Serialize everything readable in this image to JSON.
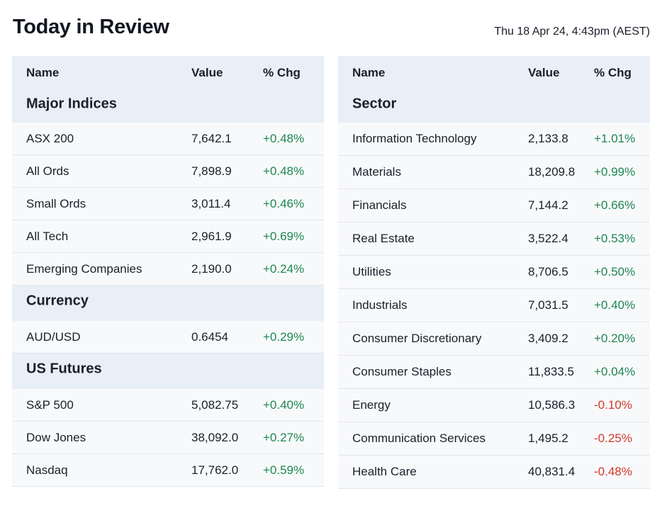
{
  "page": {
    "title": "Today in Review",
    "datetime": "Thu 18 Apr 24, 4:43pm (AEST)"
  },
  "colors": {
    "positive": "#1d8653",
    "negative": "#d1392a",
    "header_bg": "#e9eff7"
  },
  "left": {
    "columns": {
      "name": "Name",
      "value": "Value",
      "chg": "% Chg"
    },
    "sections": [
      {
        "title": "Major Indices",
        "rows": [
          {
            "name": "ASX 200",
            "value": "7,642.1",
            "chg": "+0.48%"
          },
          {
            "name": "All Ords",
            "value": "7,898.9",
            "chg": "+0.48%"
          },
          {
            "name": "Small Ords",
            "value": "3,011.4",
            "chg": "+0.46%"
          },
          {
            "name": "All Tech",
            "value": "2,961.9",
            "chg": "+0.69%"
          },
          {
            "name": "Emerging Companies",
            "value": "2,190.0",
            "chg": "+0.24%"
          }
        ]
      },
      {
        "title": "Currency",
        "rows": [
          {
            "name": "AUD/USD",
            "value": "0.6454",
            "chg": "+0.29%"
          }
        ]
      },
      {
        "title": "US Futures",
        "rows": [
          {
            "name": "S&P 500",
            "value": "5,082.75",
            "chg": "+0.40%"
          },
          {
            "name": "Dow Jones",
            "value": "38,092.0",
            "chg": "+0.27%"
          },
          {
            "name": "Nasdaq",
            "value": "17,762.0",
            "chg": "+0.59%"
          }
        ]
      }
    ]
  },
  "right": {
    "columns": {
      "name": "Name",
      "value": "Value",
      "chg": "% Chg"
    },
    "sections": [
      {
        "title": "Sector",
        "rows": [
          {
            "name": "Information Technology",
            "value": "2,133.8",
            "chg": "+1.01%"
          },
          {
            "name": "Materials",
            "value": "18,209.8",
            "chg": "+0.99%"
          },
          {
            "name": "Financials",
            "value": "7,144.2",
            "chg": "+0.66%"
          },
          {
            "name": "Real Estate",
            "value": "3,522.4",
            "chg": "+0.53%"
          },
          {
            "name": "Utilities",
            "value": "8,706.5",
            "chg": "+0.50%"
          },
          {
            "name": "Industrials",
            "value": "7,031.5",
            "chg": "+0.40%"
          },
          {
            "name": "Consumer Discretionary",
            "value": "3,409.2",
            "chg": "+0.20%"
          },
          {
            "name": "Consumer Staples",
            "value": "11,833.5",
            "chg": "+0.04%"
          },
          {
            "name": "Energy",
            "value": "10,586.3",
            "chg": "-0.10%"
          },
          {
            "name": "Communication Services",
            "value": "1,495.2",
            "chg": "-0.25%"
          },
          {
            "name": "Health Care",
            "value": "40,831.4",
            "chg": "-0.48%"
          }
        ]
      }
    ]
  }
}
